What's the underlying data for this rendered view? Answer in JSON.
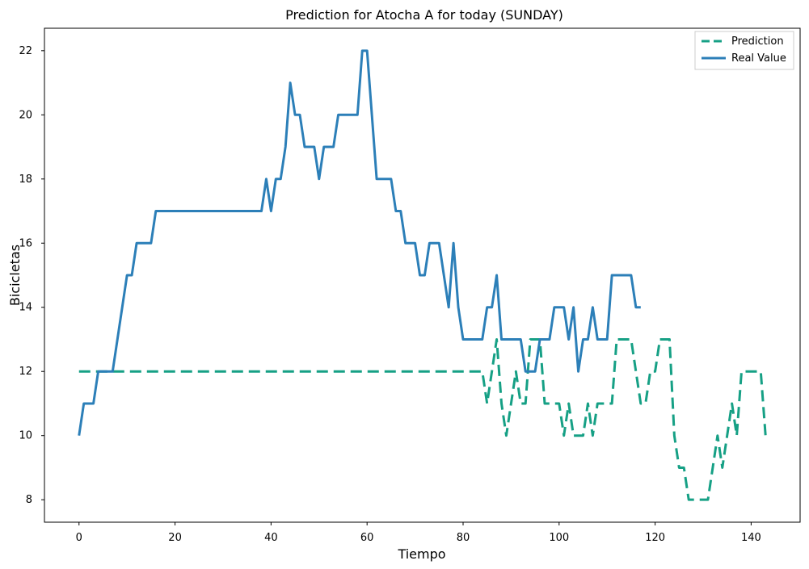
{
  "chart_data": {
    "type": "line",
    "title": "Prediction for Atocha A for today (SUNDAY)",
    "xlabel": "Tiempo",
    "ylabel": "Bicicletas",
    "xlim": [
      -7.2,
      150.2
    ],
    "ylim": [
      7.3,
      22.7
    ],
    "xticks": [
      0,
      20,
      40,
      60,
      80,
      100,
      120,
      140
    ],
    "yticks": [
      8,
      10,
      12,
      14,
      16,
      18,
      20,
      22
    ],
    "grid": false,
    "legend": "top-right",
    "series": [
      {
        "name": "Prediction",
        "color": "#16a085",
        "style": "dashed",
        "x": [
          0,
          1,
          2,
          3,
          4,
          5,
          6,
          7,
          8,
          9,
          10,
          11,
          12,
          13,
          14,
          15,
          16,
          17,
          18,
          19,
          20,
          21,
          22,
          23,
          24,
          25,
          26,
          27,
          28,
          29,
          30,
          31,
          32,
          33,
          34,
          35,
          36,
          37,
          38,
          39,
          40,
          41,
          42,
          43,
          44,
          45,
          46,
          47,
          48,
          49,
          50,
          51,
          52,
          53,
          54,
          55,
          56,
          57,
          58,
          59,
          60,
          61,
          62,
          63,
          64,
          65,
          66,
          67,
          68,
          69,
          70,
          71,
          72,
          73,
          74,
          75,
          76,
          77,
          78,
          79,
          80,
          81,
          82,
          83,
          84,
          85,
          86,
          87,
          88,
          89,
          90,
          91,
          92,
          93,
          94,
          95,
          96,
          97,
          98,
          99,
          100,
          101,
          102,
          103,
          104,
          105,
          106,
          107,
          108,
          109,
          110,
          111,
          112,
          113,
          114,
          115,
          116,
          117,
          118,
          119,
          120,
          121,
          122,
          123,
          124,
          125,
          126,
          127,
          128,
          129,
          130,
          131,
          132,
          133,
          134,
          135,
          136,
          137,
          138,
          139,
          140,
          141,
          142,
          143
        ],
        "values": [
          12,
          12,
          12,
          12,
          12,
          12,
          12,
          12,
          12,
          12,
          12,
          12,
          12,
          12,
          12,
          12,
          12,
          12,
          12,
          12,
          12,
          12,
          12,
          12,
          12,
          12,
          12,
          12,
          12,
          12,
          12,
          12,
          12,
          12,
          12,
          12,
          12,
          12,
          12,
          12,
          12,
          12,
          12,
          12,
          12,
          12,
          12,
          12,
          12,
          12,
          12,
          12,
          12,
          12,
          12,
          12,
          12,
          12,
          12,
          12,
          12,
          12,
          12,
          12,
          12,
          12,
          12,
          12,
          12,
          12,
          12,
          12,
          12,
          12,
          12,
          12,
          12,
          12,
          12,
          12,
          12,
          12,
          12,
          12,
          12,
          11,
          12,
          13,
          11,
          10,
          11,
          12,
          11,
          11,
          13,
          13,
          13,
          11,
          11,
          11,
          11,
          10,
          11,
          10,
          10,
          10,
          11,
          10,
          11,
          11,
          11,
          11,
          13,
          13,
          13,
          13,
          12,
          11,
          11,
          12,
          12,
          13,
          13,
          13,
          10,
          9,
          9,
          8,
          8,
          8,
          8,
          8,
          9,
          10,
          9,
          10,
          11,
          10,
          12,
          12,
          12,
          12,
          12,
          10
        ]
      },
      {
        "name": "Real Value",
        "color": "#2c7fb8",
        "style": "solid",
        "x": [
          0,
          1,
          2,
          3,
          4,
          5,
          6,
          7,
          8,
          9,
          10,
          11,
          12,
          13,
          14,
          15,
          16,
          17,
          18,
          19,
          20,
          21,
          22,
          23,
          24,
          25,
          26,
          27,
          28,
          29,
          30,
          31,
          32,
          33,
          34,
          35,
          36,
          37,
          38,
          39,
          40,
          41,
          42,
          43,
          44,
          45,
          46,
          47,
          48,
          49,
          50,
          51,
          52,
          53,
          54,
          55,
          56,
          57,
          58,
          59,
          60,
          61,
          62,
          63,
          64,
          65,
          66,
          67,
          68,
          69,
          70,
          71,
          72,
          73,
          74,
          75,
          76,
          77,
          78,
          79,
          80,
          81,
          82,
          83,
          84,
          85,
          86,
          87,
          88,
          89,
          90,
          91,
          92,
          93,
          94,
          95,
          96,
          97,
          98,
          99,
          100,
          101,
          102,
          103,
          104,
          105,
          106,
          107,
          108,
          109,
          110,
          111,
          112,
          113,
          114,
          115,
          116,
          117
        ],
        "values": [
          10,
          11,
          11,
          11,
          12,
          12,
          12,
          12,
          13,
          14,
          15,
          15,
          16,
          16,
          16,
          16,
          17,
          17,
          17,
          17,
          17,
          17,
          17,
          17,
          17,
          17,
          17,
          17,
          17,
          17,
          17,
          17,
          17,
          17,
          17,
          17,
          17,
          17,
          17,
          18,
          17,
          18,
          18,
          19,
          21,
          20,
          20,
          19,
          19,
          19,
          18,
          19,
          19,
          19,
          20,
          20,
          20,
          20,
          20,
          22,
          22,
          20,
          18,
          18,
          18,
          18,
          17,
          17,
          16,
          16,
          16,
          15,
          15,
          16,
          16,
          16,
          15,
          14,
          16,
          14,
          13,
          13,
          13,
          13,
          13,
          14,
          14,
          15,
          13,
          13,
          13,
          13,
          13,
          12,
          12,
          12,
          13,
          13,
          13,
          14,
          14,
          14,
          13,
          14,
          12,
          13,
          13,
          14,
          13,
          13,
          13,
          15,
          15,
          15,
          15,
          15,
          14,
          14
        ]
      }
    ]
  }
}
